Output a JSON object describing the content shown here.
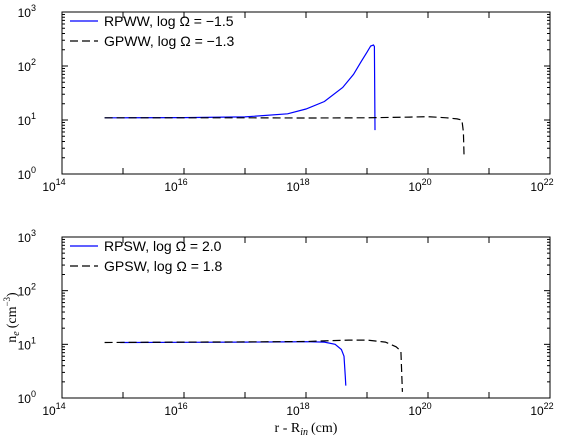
{
  "chart_data": [
    {
      "type": "line",
      "title": "",
      "xlabel": "",
      "ylabel": "",
      "xscale": "log",
      "yscale": "log",
      "xlim": [
        100000000000000.0,
        1e+22
      ],
      "ylim": [
        1,
        1000
      ],
      "x_tick_exponents": [
        "14",
        "16",
        "18",
        "20",
        "22"
      ],
      "y_tick_exponents": [
        "0",
        "1",
        "2",
        "3"
      ],
      "tick_base": "10",
      "grid": false,
      "legend_position": "top-left",
      "series": [
        {
          "name": "RPWW, log Ω = −1.5",
          "color": "#0000ff",
          "dash": "solid",
          "points": [
            [
              500000000000000.0,
              11
            ],
            [
              1000000000000000.0,
              11
            ],
            [
              1e+16,
              11.1
            ],
            [
              1e+17,
              11.4
            ],
            [
              5e+17,
              13
            ],
            [
              1e+18,
              16
            ],
            [
              2e+18,
              22
            ],
            [
              4e+18,
              40
            ],
            [
              6e+18,
              70
            ],
            [
              8e+18,
              120
            ],
            [
              1e+19,
              180
            ],
            [
              1.15e+19,
              235
            ],
            [
              1.28e+19,
              245
            ],
            [
              1.32e+19,
              230
            ],
            [
              1.35e+19,
              6.5
            ]
          ]
        },
        {
          "name": "GPWW, log Ω = −1.3",
          "color": "#000000",
          "dash": "dashed",
          "points": [
            [
              500000000000000.0,
              11
            ],
            [
              1e+16,
              11
            ],
            [
              1e+17,
              11
            ],
            [
              1e+18,
              10.9
            ],
            [
              1e+19,
              11
            ],
            [
              5e+19,
              11.3
            ],
            [
              1e+20,
              11.5
            ],
            [
              2e+20,
              11
            ],
            [
              3e+20,
              10.5
            ],
            [
              3.6e+20,
              10
            ],
            [
              3.8e+20,
              6
            ],
            [
              3.9e+20,
              2
            ]
          ]
        }
      ]
    },
    {
      "type": "line",
      "title": "",
      "xlabel": "r - R",
      "xlabel_sub": "in",
      "xlabel_unit": "(cm)",
      "ylabel": "n",
      "ylabel_sub": "e",
      "ylabel_unit": "(cm",
      "ylabel_sup": "−3",
      "ylabel_close": ")",
      "xscale": "log",
      "yscale": "log",
      "xlim": [
        100000000000000.0,
        1e+22
      ],
      "ylim": [
        1,
        1000
      ],
      "x_tick_exponents": [
        "14",
        "16",
        "18",
        "20",
        "22"
      ],
      "y_tick_exponents": [
        "0",
        "1",
        "2",
        "3"
      ],
      "tick_base": "10",
      "grid": false,
      "legend_position": "top-left",
      "series": [
        {
          "name": "RPSW, log Ω = 2.0",
          "color": "#0000ff",
          "dash": "solid",
          "points": [
            [
              900000000000000.0,
              10.8
            ],
            [
              1e+16,
              10.9
            ],
            [
              1e+17,
              11
            ],
            [
              5e+17,
              11.1
            ],
            [
              1e+18,
              11.2
            ],
            [
              2e+18,
              11
            ],
            [
              3e+18,
              10
            ],
            [
              3.8e+18,
              8
            ],
            [
              4.2e+18,
              6
            ],
            [
              4.4e+18,
              2.5
            ],
            [
              4.5e+18,
              1.7
            ]
          ]
        },
        {
          "name": "GPSW, log Ω = 1.8",
          "color": "#000000",
          "dash": "dashed",
          "points": [
            [
              500000000000000.0,
              10.8
            ],
            [
              1e+16,
              11
            ],
            [
              1e+17,
              11.1
            ],
            [
              1e+18,
              11.3
            ],
            [
              5e+18,
              12
            ],
            [
              1e+19,
              12
            ],
            [
              2e+19,
              11
            ],
            [
              3e+19,
              9
            ],
            [
              3.6e+19,
              7.5
            ],
            [
              3.8e+19,
              1.3
            ]
          ]
        }
      ]
    }
  ]
}
